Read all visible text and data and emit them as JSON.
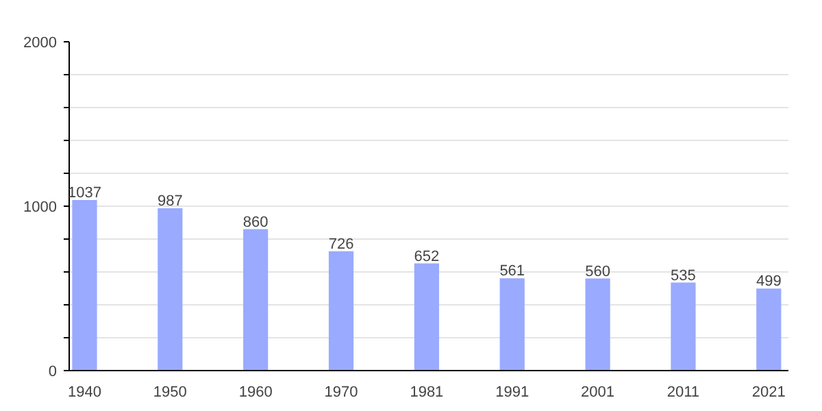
{
  "chart_data": {
    "type": "bar",
    "categories": [
      "1940",
      "1950",
      "1960",
      "1970",
      "1981",
      "1991",
      "2001",
      "2011",
      "2021"
    ],
    "values": [
      1037,
      987,
      860,
      726,
      652,
      561,
      560,
      535,
      499
    ],
    "color": "#99aaff",
    "ylim": [
      0,
      2000
    ],
    "yticks": [
      0,
      {
        "value": 200,
        "label": null
      },
      {
        "value": 400,
        "label": null
      },
      {
        "value": 600,
        "label": null
      },
      {
        "value": 800,
        "label": null
      },
      1000,
      {
        "value": 1200,
        "label": null
      },
      {
        "value": 1400,
        "label": null
      },
      {
        "value": 1600,
        "label": null
      },
      {
        "value": 1800,
        "label": null
      },
      2000
    ],
    "grid": "y",
    "data_labels": true
  }
}
